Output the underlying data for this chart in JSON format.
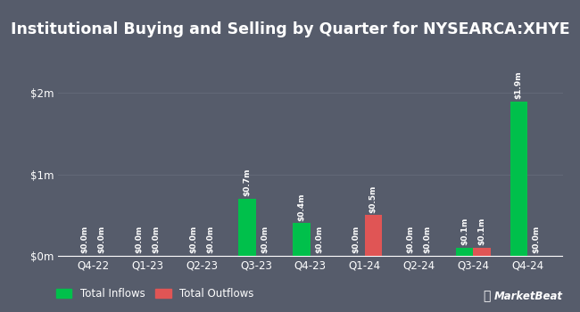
{
  "title": "Institutional Buying and Selling by Quarter for NYSEARCA:XHYE",
  "quarters": [
    "Q4-22",
    "Q1-23",
    "Q2-23",
    "Q3-23",
    "Q4-23",
    "Q1-24",
    "Q2-24",
    "Q3-24",
    "Q4-24"
  ],
  "inflows": [
    0.0,
    0.0,
    0.0,
    0.7,
    0.4,
    0.0,
    0.0,
    0.1,
    1.9
  ],
  "outflows": [
    0.0,
    0.0,
    0.0,
    0.0,
    0.0,
    0.5,
    0.0,
    0.1,
    0.0
  ],
  "inflow_labels": [
    "$0.0m",
    "$0.0m",
    "$0.0m",
    "$0.7m",
    "$0.4m",
    "$0.0m",
    "$0.0m",
    "$0.1m",
    "$1.9m"
  ],
  "outflow_labels": [
    "$0.0m",
    "$0.0m",
    "$0.0m",
    "$0.0m",
    "$0.0m",
    "$0.5m",
    "$0.0m",
    "$0.1m",
    "$0.0m"
  ],
  "inflow_color": "#00c04b",
  "outflow_color": "#e05555",
  "background_color": "#565c6b",
  "grid_color": "#636978",
  "text_color": "#ffffff",
  "title_fontsize": 12.5,
  "label_fontsize": 6.5,
  "tick_fontsize": 8.5,
  "legend_fontsize": 8.5,
  "ylim": [
    0,
    2.3
  ],
  "yticks": [
    0,
    1,
    2
  ],
  "ytick_labels": [
    "$0m",
    "$1m",
    "$2m"
  ],
  "bar_width": 0.32
}
